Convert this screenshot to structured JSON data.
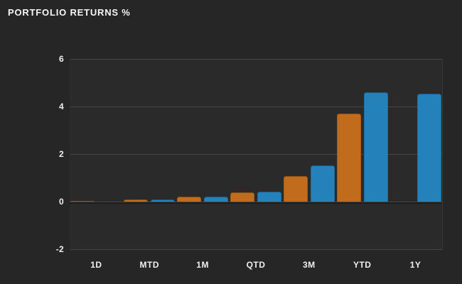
{
  "header": {
    "title": "PORTFOLIO RETURNS %"
  },
  "colors": {
    "background": "#262626",
    "plot_background": "#2a2a2a",
    "gridline": "#454545",
    "zero_shadow": "#1d1d1d",
    "label_text": "#efefef",
    "title_text": "#f7f7f7",
    "orange": "#c06c1c",
    "blue": "#2481ba"
  },
  "chart_data": {
    "type": "bar",
    "title": "PORTFOLIO RETURNS %",
    "categories": [
      "1D",
      "MTD",
      "1M",
      "QTD",
      "3M",
      "YTD",
      "1Y"
    ],
    "series": [
      {
        "name": "orange",
        "color": "#c06c1c",
        "values": [
          0.03,
          0.1,
          0.22,
          0.38,
          1.07,
          3.7,
          null
        ]
      },
      {
        "name": "blue",
        "color": "#2481ba",
        "values": [
          0,
          0.09,
          0.21,
          0.43,
          1.52,
          4.6,
          4.55
        ]
      }
    ],
    "xlabel": "",
    "ylabel": "",
    "ylim": [
      -2,
      6
    ],
    "yticks": [
      6,
      4,
      2,
      0,
      -2
    ],
    "grid": "horizontal",
    "legend": "none"
  }
}
